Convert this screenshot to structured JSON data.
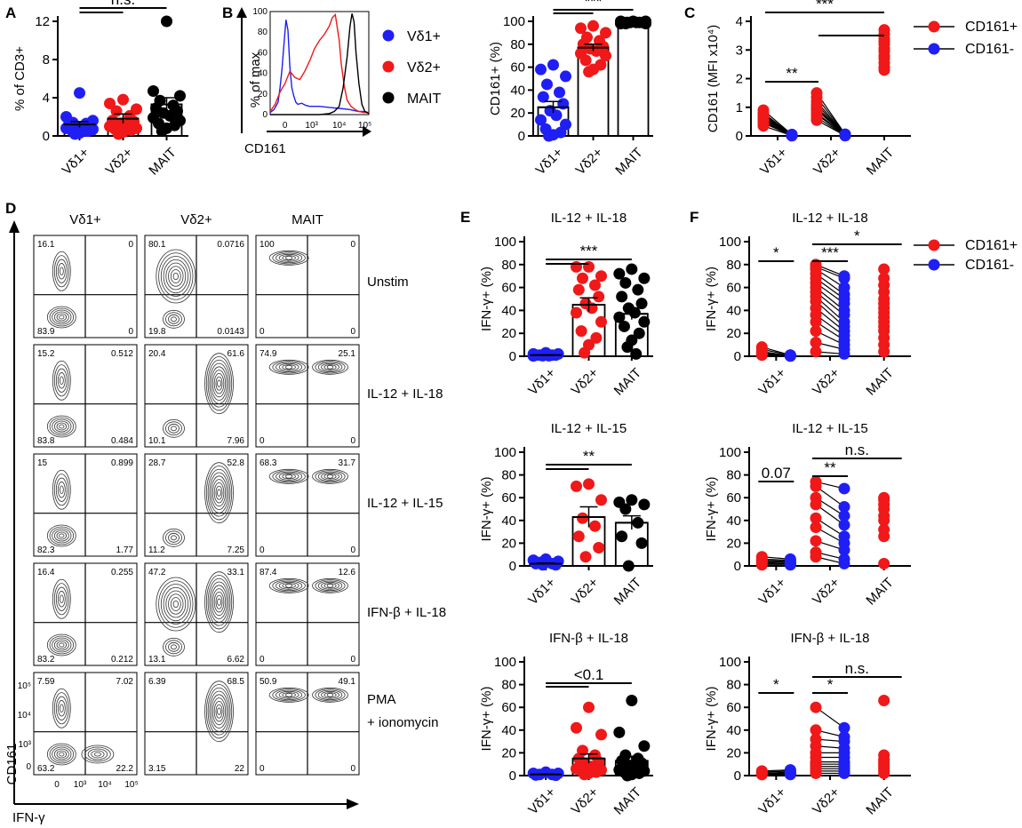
{
  "figure": {
    "panel_labels": [
      "A",
      "B",
      "C",
      "D",
      "E",
      "F"
    ],
    "colors": {
      "vd1": "#1f1ff5",
      "vd2": "#f01818",
      "mait": "#000000",
      "cd161pos": "#f01818",
      "cd161neg": "#1f1ff5"
    }
  },
  "chart_data": [
    {
      "id": "A",
      "type": "scatter",
      "ylabel": "% of CD3+",
      "ylim": [
        0,
        12
      ],
      "yticks": [
        0,
        4,
        8,
        12
      ],
      "categories": [
        "Vδ1+",
        "Vδ2+",
        "MAIT"
      ],
      "means": [
        1.2,
        1.8,
        3.3
      ],
      "sem": [
        0.3,
        0.5,
        0.7
      ],
      "points": [
        [
          4.5,
          2.0,
          1.6,
          1.4,
          1.3,
          1.2,
          1.1,
          1.0,
          0.9,
          0.8,
          0.7,
          0.6,
          0.5,
          0.3,
          0.2
        ],
        [
          3.8,
          3.4,
          2.8,
          2.6,
          2.1,
          1.6,
          1.5,
          1.3,
          1.1,
          1.0,
          0.8,
          0.7,
          0.6,
          0.4,
          0.2
        ],
        [
          12.0,
          4.7,
          4.2,
          3.7,
          3.2,
          2.9,
          2.6,
          2.4,
          2.1,
          1.9,
          1.6,
          1.3,
          1.1,
          0.8,
          0.5
        ]
      ],
      "significance": [
        {
          "from": 0,
          "to": 1,
          "label": ""
        },
        {
          "from": 0,
          "to": 2,
          "label": "n.s."
        }
      ]
    },
    {
      "id": "B-hist",
      "type": "line",
      "title": "",
      "xlabel": "CD161",
      "ylabel": "% of max",
      "ylim": [
        0,
        100
      ],
      "yticks": [
        0,
        20,
        40,
        60,
        80,
        100
      ],
      "xtick_labels": [
        "0",
        "10³",
        "10⁴",
        "10⁵"
      ],
      "legend": [
        "Vδ1+",
        "Vδ2+",
        "MAIT"
      ],
      "series": [
        {
          "name": "Vδ1+",
          "x": [
            0,
            0.04,
            0.08,
            0.1,
            0.12,
            0.14,
            0.16,
            0.18,
            0.2,
            0.22,
            0.24,
            0.26,
            0.28,
            0.32,
            0.36,
            0.4,
            0.5,
            0.6,
            0.7,
            0.8,
            0.85,
            0.9,
            0.95,
            1.0
          ],
          "y": [
            2,
            5,
            12,
            26,
            44,
            68,
            92,
            82,
            46,
            26,
            18,
            12,
            10,
            11,
            9,
            8,
            8,
            7,
            6,
            5,
            4,
            3,
            3,
            2
          ]
        },
        {
          "name": "Vδ2+",
          "x": [
            0,
            0.05,
            0.1,
            0.15,
            0.2,
            0.25,
            0.3,
            0.35,
            0.4,
            0.45,
            0.5,
            0.55,
            0.6,
            0.63,
            0.66,
            0.7,
            0.72,
            0.75,
            0.78,
            0.82,
            0.86,
            0.9,
            0.95,
            1.0
          ],
          "y": [
            3,
            10,
            22,
            30,
            42,
            36,
            34,
            42,
            52,
            64,
            72,
            78,
            86,
            94,
            97,
            72,
            50,
            28,
            14,
            8,
            5,
            3,
            2,
            2
          ]
        },
        {
          "name": "MAIT",
          "x": [
            0,
            0.5,
            0.6,
            0.65,
            0.7,
            0.74,
            0.78,
            0.81,
            0.83,
            0.85,
            0.87,
            0.9,
            0.93,
            0.96,
            1.0
          ],
          "y": [
            0,
            0,
            1,
            3,
            8,
            26,
            56,
            86,
            98,
            90,
            60,
            30,
            10,
            3,
            1
          ]
        }
      ]
    },
    {
      "id": "B",
      "type": "bar",
      "ylabel": "CD161+ (%)",
      "ylim": [
        0,
        100
      ],
      "yticks": [
        0,
        20,
        40,
        60,
        80,
        100
      ],
      "categories": [
        "Vδ1+",
        "Vδ2+",
        "MAIT"
      ],
      "means": [
        25,
        77,
        99
      ],
      "sem": [
        5,
        3,
        0.3
      ],
      "points": [
        [
          62,
          58,
          52,
          45,
          38,
          34,
          28,
          22,
          18,
          14,
          10,
          6,
          3,
          1,
          0
        ],
        [
          96,
          94,
          90,
          86,
          83,
          80,
          78,
          76,
          74,
          72,
          70,
          66,
          62,
          58,
          56
        ],
        [
          100,
          100,
          100,
          99,
          99,
          99,
          99,
          99,
          99,
          98,
          98,
          98
        ]
      ],
      "significance": [
        {
          "from": 0,
          "to": 1,
          "label": ""
        },
        {
          "from": 0,
          "to": 2,
          "label": "***"
        }
      ]
    },
    {
      "id": "C",
      "type": "scatter",
      "ylabel": "CD161 (MFI x10⁴)",
      "ylim": [
        0,
        4
      ],
      "yticks": [
        0,
        1,
        2,
        3,
        4
      ],
      "categories": [
        "Vδ1+",
        "Vδ2+",
        "MAIT"
      ],
      "legend": [
        "CD161+",
        "CD161-"
      ],
      "paired": [
        {
          "pos": [
            0.9,
            0.8,
            0.75,
            0.7,
            0.65,
            0.6,
            0.55,
            0.5,
            0.45,
            0.35
          ],
          "neg": [
            0.05,
            0.04,
            0.03,
            0.03,
            0.02,
            0.02,
            0.02,
            0.01,
            0.01,
            0.01
          ]
        },
        {
          "pos": [
            1.5,
            1.35,
            1.2,
            1.1,
            1.0,
            0.95,
            0.9,
            0.8,
            0.75,
            0.65,
            0.55
          ],
          "neg": [
            0.06,
            0.05,
            0.05,
            0.04,
            0.04,
            0.03,
            0.03,
            0.02,
            0.02,
            0.01,
            0.01
          ]
        },
        {
          "pos": [
            3.7,
            3.55,
            3.4,
            3.3,
            3.2,
            3.05,
            2.95,
            2.8,
            2.7,
            2.55,
            2.4,
            2.3
          ],
          "neg": []
        }
      ],
      "significance": [
        {
          "from": 0,
          "to": 1,
          "label": "**"
        },
        {
          "from": 0,
          "to": 2,
          "label": "***"
        },
        {
          "from": 1,
          "to": 2,
          "label": ""
        }
      ]
    },
    {
      "id": "D",
      "type": "table",
      "columns": [
        "Vδ1+",
        "Vδ2+",
        "MAIT"
      ],
      "rows": [
        "Unstim",
        "IL-12 + IL-18",
        "IL-12 + IL-15",
        "IFN-β + IL-18",
        "PMA + ionomycin"
      ],
      "quadrants_order": [
        "top-left",
        "top-right",
        "bottom-left",
        "bottom-right"
      ],
      "values": [
        [
          [
            "16.1",
            "0",
            "83.9",
            "0"
          ],
          [
            "80.1",
            "0.0716",
            "19.8",
            "0.0143"
          ],
          [
            "100",
            "0",
            "0",
            "0"
          ]
        ],
        [
          [
            "15.2",
            "0.512",
            "83.8",
            "0.484"
          ],
          [
            "20.4",
            "61.6",
            "10.1",
            "7.96"
          ],
          [
            "74.9",
            "25.1",
            "0",
            "0"
          ]
        ],
        [
          [
            "15",
            "0.899",
            "82.3",
            "1.77"
          ],
          [
            "28.7",
            "52.8",
            "11.2",
            "7.25"
          ],
          [
            "68.3",
            "31.7",
            "0",
            "0"
          ]
        ],
        [
          [
            "16.4",
            "0.255",
            "83.2",
            "0.212"
          ],
          [
            "47.2",
            "33.1",
            "13.1",
            "6.62"
          ],
          [
            "87.4",
            "12.6",
            "0",
            "0"
          ]
        ],
        [
          [
            "7.59",
            "7.02",
            "63.2",
            "22.2"
          ],
          [
            "6.39",
            "68.5",
            "3.15",
            "22"
          ],
          [
            "50.9",
            "49.1",
            "0",
            "0"
          ]
        ]
      ],
      "xlabel": "IFN-γ",
      "ylabel": "CD161",
      "axis_ticks": [
        "0",
        "10³",
        "10⁴",
        "10⁵"
      ]
    },
    {
      "id": "E1",
      "type": "bar",
      "title": "IL-12 + IL-18",
      "ylabel": "IFN-γ+ (%)",
      "ylim": [
        0,
        100
      ],
      "yticks": [
        0,
        20,
        40,
        60,
        80,
        100
      ],
      "categories": [
        "Vδ1+",
        "Vδ2+",
        "MAIT"
      ],
      "means": [
        1,
        45,
        37
      ],
      "sem": [
        0.3,
        6,
        5
      ],
      "points": [
        [
          3,
          2,
          2,
          1,
          1,
          1,
          1,
          0.5,
          0.5,
          0.3
        ],
        [
          78,
          78,
          70,
          68,
          62,
          58,
          52,
          46,
          42,
          38,
          30,
          22,
          16,
          10,
          3
        ],
        [
          76,
          72,
          68,
          64,
          58,
          52,
          46,
          42,
          38,
          34,
          30,
          26,
          20,
          14,
          8,
          2
        ]
      ],
      "significance": [
        {
          "from": 0,
          "to": 1,
          "label": ""
        },
        {
          "from": 0,
          "to": 2,
          "label": "***"
        }
      ]
    },
    {
      "id": "E2",
      "type": "bar",
      "title": "IL-12 + IL-15",
      "ylabel": "IFN-γ+ (%)",
      "ylim": [
        0,
        100
      ],
      "yticks": [
        0,
        20,
        40,
        60,
        80,
        100
      ],
      "categories": [
        "Vδ1+",
        "Vδ2+",
        "MAIT"
      ],
      "means": [
        2,
        43,
        38
      ],
      "sem": [
        0.5,
        9,
        6
      ],
      "points": [
        [
          6,
          5,
          4,
          3,
          2,
          2,
          1,
          1
        ],
        [
          72,
          70,
          58,
          42,
          35,
          26,
          16,
          8
        ],
        [
          58,
          56,
          54,
          50,
          38,
          26,
          20,
          0
        ]
      ],
      "significance": [
        {
          "from": 0,
          "to": 1,
          "label": ""
        },
        {
          "from": 0,
          "to": 2,
          "label": "**"
        }
      ]
    },
    {
      "id": "E3",
      "type": "bar",
      "title": "IFN-β + IL-18",
      "ylabel": "IFN-γ+ (%)",
      "ylim": [
        0,
        100
      ],
      "yticks": [
        0,
        20,
        40,
        60,
        80,
        100
      ],
      "categories": [
        "Vδ1+",
        "Vδ2+",
        "MAIT"
      ],
      "means": [
        1,
        15,
        13
      ],
      "sem": [
        0.3,
        4,
        4
      ],
      "points": [
        [
          3,
          2,
          2,
          1,
          1,
          0.5,
          0.3
        ],
        [
          60,
          42,
          36,
          22,
          18,
          15,
          12,
          10,
          8,
          6,
          5,
          4,
          3,
          2,
          1
        ],
        [
          66,
          38,
          26,
          18,
          15,
          13,
          11,
          9,
          7,
          5,
          4,
          3,
          2,
          1,
          0
        ]
      ],
      "significance": [
        {
          "from": 0,
          "to": 1,
          "label": ""
        },
        {
          "from": 0,
          "to": 2,
          "label": "<0.1"
        }
      ]
    },
    {
      "id": "F1",
      "type": "scatter",
      "title": "IL-12 + IL-18",
      "ylabel": "IFN-γ+ (%)",
      "ylim": [
        0,
        100
      ],
      "yticks": [
        0,
        20,
        40,
        60,
        80,
        100
      ],
      "categories": [
        "Vδ1+",
        "Vδ2+",
        "MAIT"
      ],
      "legend": [
        "CD161+",
        "CD161-"
      ],
      "paired": [
        {
          "pos": [
            8,
            6,
            4,
            3,
            2,
            1
          ],
          "neg": [
            1,
            1,
            0.5,
            0.5,
            0.3,
            0.2
          ]
        },
        {
          "pos": [
            80,
            78,
            76,
            72,
            68,
            64,
            60,
            56,
            52,
            48,
            42,
            36,
            30,
            22,
            12,
            4
          ],
          "neg": [
            70,
            68,
            60,
            54,
            50,
            46,
            40,
            36,
            30,
            26,
            22,
            18,
            14,
            10,
            6,
            2
          ]
        },
        {
          "pos": [
            76,
            68,
            62,
            56,
            50,
            46,
            42,
            38,
            34,
            30,
            26,
            22,
            16,
            10,
            4
          ],
          "neg": []
        }
      ],
      "significance": [
        {
          "from": 0,
          "to": 0,
          "label": "*"
        },
        {
          "from": 1,
          "to": 1,
          "label": "***"
        },
        {
          "from": 1,
          "to": 2,
          "label": "*"
        }
      ]
    },
    {
      "id": "F2",
      "type": "scatter",
      "title": "IL-12 + IL-15",
      "ylabel": "IFN-γ+ (%)",
      "ylim": [
        0,
        100
      ],
      "yticks": [
        0,
        20,
        40,
        60,
        80,
        100
      ],
      "categories": [
        "Vδ1+",
        "Vδ2+",
        "MAIT"
      ],
      "paired": [
        {
          "pos": [
            8,
            6,
            5,
            4,
            3,
            2,
            1
          ],
          "neg": [
            6,
            5,
            4,
            3,
            2,
            2,
            1
          ]
        },
        {
          "pos": [
            74,
            70,
            60,
            54,
            42,
            34,
            22,
            12,
            8
          ],
          "neg": [
            68,
            52,
            44,
            36,
            26,
            20,
            14,
            6,
            2
          ]
        },
        {
          "pos": [
            60,
            58,
            54,
            50,
            44,
            40,
            32,
            26,
            2
          ],
          "neg": []
        }
      ],
      "significance": [
        {
          "from": 0,
          "to": 0,
          "label": "0.07"
        },
        {
          "from": 1,
          "to": 1,
          "label": "**"
        },
        {
          "from": 1,
          "to": 2,
          "label": "n.s."
        }
      ]
    },
    {
      "id": "F3",
      "type": "scatter",
      "title": "IFN-β + IL-18",
      "ylabel": "IFN-γ+ (%)",
      "ylim": [
        0,
        100
      ],
      "yticks": [
        0,
        20,
        40,
        60,
        80,
        100
      ],
      "categories": [
        "Vδ1+",
        "Vδ2+",
        "MAIT"
      ],
      "paired": [
        {
          "pos": [
            4,
            3,
            2,
            2,
            1,
            1
          ],
          "neg": [
            5,
            4,
            3,
            2,
            2,
            1
          ]
        },
        {
          "pos": [
            60,
            40,
            32,
            26,
            20,
            16,
            12,
            10,
            8,
            6,
            4,
            2
          ],
          "neg": [
            42,
            34,
            30,
            24,
            20,
            16,
            12,
            10,
            8,
            6,
            4,
            2
          ]
        },
        {
          "pos": [
            66,
            18,
            14,
            12,
            10,
            8,
            6,
            4,
            2
          ],
          "neg": []
        }
      ],
      "significance": [
        {
          "from": 0,
          "to": 0,
          "label": "*"
        },
        {
          "from": 1,
          "to": 1,
          "label": "*"
        },
        {
          "from": 1,
          "to": 2,
          "label": "n.s."
        }
      ]
    }
  ]
}
